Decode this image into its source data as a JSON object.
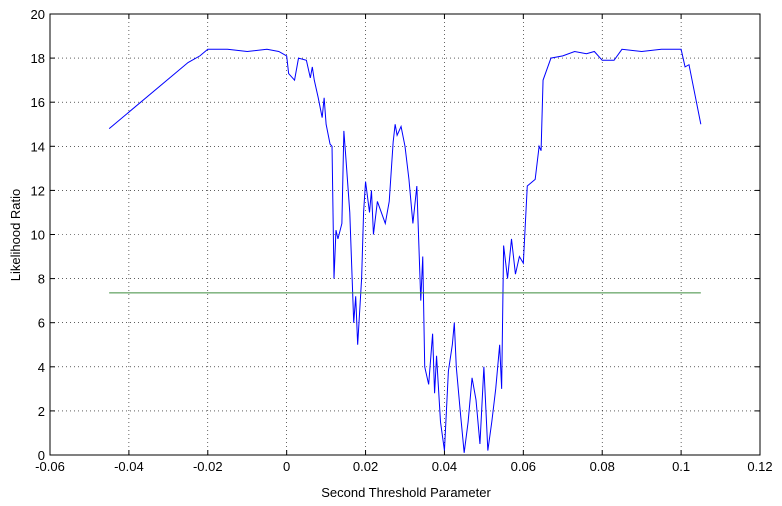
{
  "chart_data": {
    "type": "line",
    "x_label": "Second Threshold Parameter",
    "y_label": "Likelihood Ratio",
    "xlim": [
      -0.06,
      0.12
    ],
    "ylim": [
      0,
      20
    ],
    "xticks": [
      -0.06,
      -0.04,
      -0.02,
      0,
      0.02,
      0.04,
      0.06,
      0.08,
      0.1,
      0.12
    ],
    "yticks": [
      0,
      2,
      4,
      6,
      8,
      10,
      12,
      14,
      16,
      18,
      20
    ],
    "grid": true,
    "series": [
      {
        "color": "#0000ff",
        "x": [
          -0.045,
          -0.025,
          -0.022,
          -0.02,
          -0.015,
          -0.01,
          -0.005,
          -0.002,
          0,
          0.0005,
          0.002,
          0.003,
          0.005,
          0.006,
          0.0065,
          0.007,
          0.008,
          0.009,
          0.0095,
          0.01,
          0.011,
          0.0115,
          0.012,
          0.0125,
          0.013,
          0.014,
          0.0145,
          0.015,
          0.016,
          0.017,
          0.0175,
          0.018,
          0.019,
          0.0195,
          0.02,
          0.021,
          0.0215,
          0.022,
          0.023,
          0.024,
          0.025,
          0.026,
          0.027,
          0.0275,
          0.028,
          0.029,
          0.03,
          0.031,
          0.032,
          0.033,
          0.034,
          0.0345,
          0.035,
          0.036,
          0.037,
          0.0375,
          0.038,
          0.039,
          0.04,
          0.041,
          0.042,
          0.0425,
          0.043,
          0.044,
          0.045,
          0.046,
          0.047,
          0.048,
          0.049,
          0.05,
          0.051,
          0.052,
          0.053,
          0.054,
          0.0545,
          0.055,
          0.056,
          0.057,
          0.058,
          0.059,
          0.06,
          0.061,
          0.063,
          0.064,
          0.0645,
          0.065,
          0.067,
          0.07,
          0.073,
          0.076,
          0.078,
          0.08,
          0.083,
          0.085,
          0.09,
          0.095,
          0.1,
          0.101,
          0.102,
          0.105
        ],
        "values": [
          14.8,
          17.8,
          18.1,
          18.4,
          18.4,
          18.3,
          18.4,
          18.3,
          18.1,
          17.3,
          17.0,
          18.0,
          17.9,
          17.1,
          17.6,
          17.0,
          16.2,
          15.3,
          16.2,
          15.0,
          14.1,
          14.0,
          8.0,
          10.2,
          9.8,
          10.5,
          14.7,
          13.5,
          11.0,
          6.0,
          7.2,
          5.0,
          8.0,
          11.0,
          12.4,
          11.0,
          12.0,
          10.0,
          11.5,
          11.0,
          10.5,
          11.5,
          14.2,
          15.0,
          14.5,
          14.9,
          14.0,
          12.5,
          10.5,
          12.2,
          7.0,
          9.0,
          4.0,
          3.2,
          5.5,
          2.8,
          4.5,
          1.5,
          0.2,
          3.8,
          5.0,
          6.0,
          4.0,
          2.0,
          0.1,
          1.5,
          3.5,
          2.5,
          0.5,
          4.0,
          0.2,
          1.5,
          3.0,
          5.0,
          3.0,
          9.5,
          8.0,
          9.8,
          8.2,
          9.0,
          8.7,
          12.2,
          12.5,
          14.0,
          13.8,
          17.0,
          18.0,
          18.1,
          18.3,
          18.2,
          18.3,
          17.9,
          17.9,
          18.4,
          18.3,
          18.4,
          18.4,
          17.6,
          17.7,
          15.0
        ]
      },
      {
        "color": "#3c8c3c",
        "x": [
          -0.045,
          0.105
        ],
        "values": [
          7.35,
          7.35
        ]
      }
    ]
  }
}
